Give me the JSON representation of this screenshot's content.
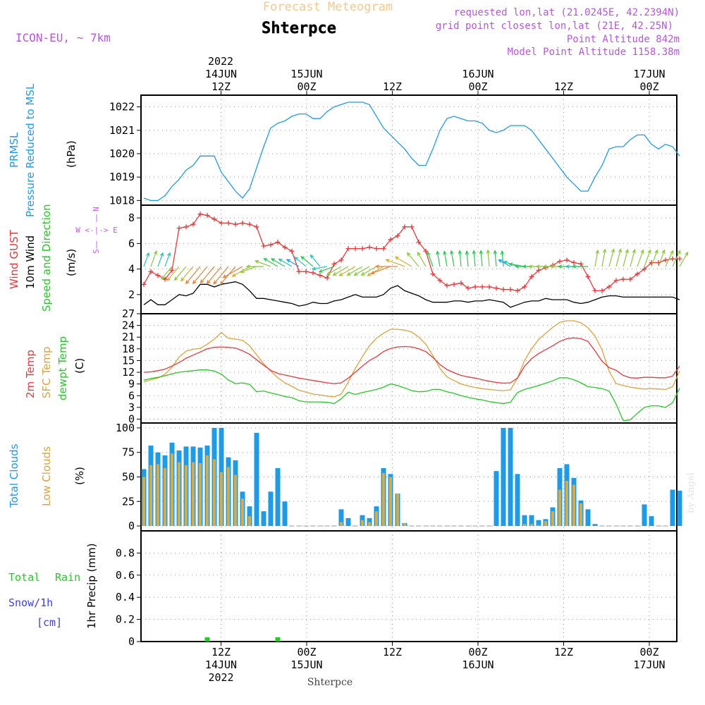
{
  "header": {
    "title": "Forecast Meteogram",
    "location": "Shterpce",
    "model": "ICON-EU, ~ 7km",
    "requested": "requested lon,lat (21.0245E, 42.2394N)",
    "gridpoint": "grid point closest lon,lat (21E, 42.25N)",
    "altitude": "Point Altitude 842m",
    "model_altitude": "Model Point Altitude 1158.38m",
    "footer": "Shterpce",
    "credit": "by Angel"
  },
  "time_axis": {
    "top_year": "2022",
    "ticks": [
      {
        "pos": 0.5,
        "top": "14JUN",
        "time": "12Z",
        "bottom": "14JUN",
        "year": "2022"
      },
      {
        "pos": 1.0,
        "top": "15JUN",
        "time": "00Z",
        "bottom": "15JUN",
        "year": ""
      },
      {
        "pos": 1.5,
        "top": "",
        "time": "12Z",
        "bottom": "",
        "year": ""
      },
      {
        "pos": 2.0,
        "top": "16JUN",
        "time": "00Z",
        "bottom": "16JUN",
        "year": ""
      },
      {
        "pos": 2.5,
        "top": "",
        "time": "12Z",
        "bottom": "",
        "year": ""
      },
      {
        "pos": 3.0,
        "top": "17JUN",
        "time": "00Z",
        "bottom": "17JUN",
        "year": ""
      }
    ]
  },
  "labels": {
    "pressure": [
      "PRMSL",
      "Pressure Reduced to MSL",
      "(hPa)"
    ],
    "wind": [
      "Wind GUST",
      "10m Wind",
      "Speed and Direction",
      "(m/s)"
    ],
    "compass": [
      "N",
      "W <-|-> E",
      "S"
    ],
    "temp": [
      "2m Temp",
      "SFC Temp",
      "dewpt Temp",
      "(C)"
    ],
    "clouds": [
      "Total Clouds",
      "Low Clouds",
      "(%)"
    ],
    "precip": [
      "Total",
      "Rain",
      "Snow/1h",
      "[cm]",
      "1hr Precip (mm)"
    ]
  },
  "colors": {
    "pressure": "#1e9be8",
    "gust": "#e8383c",
    "wind": "#000000",
    "t2m": "#e8383c",
    "tsfc": "#dfa23c",
    "dew": "#28c828",
    "total_clouds": "#1e9be8",
    "low_clouds": "#d5ac4c",
    "rain": "#28c828",
    "snow": "#3c3cf0",
    "compass": "#c060e0",
    "title": "#f5c98e",
    "info": "#b458d8"
  },
  "chart_data": [
    {
      "type": "line",
      "title": "PRMSL Pressure Reduced to MSL",
      "ylabel": "(hPa)",
      "ylim": [
        1017.8,
        1022.5
      ],
      "yticks": [
        1018,
        1019,
        1020,
        1021,
        1022
      ],
      "values": [
        1018.1,
        1018.0,
        1018.0,
        1018.2,
        1018.6,
        1018.9,
        1019.3,
        1019.5,
        1019.9,
        1019.9,
        1019.9,
        1019.2,
        1018.8,
        1018.4,
        1018.1,
        1018.5,
        1019.4,
        1020.3,
        1021.1,
        1021.3,
        1021.4,
        1021.6,
        1021.7,
        1021.7,
        1021.5,
        1021.5,
        1021.8,
        1022.0,
        1022.1,
        1022.2,
        1022.2,
        1022.2,
        1022.1,
        1021.6,
        1021.1,
        1020.8,
        1020.5,
        1020.2,
        1019.8,
        1019.5,
        1019.5,
        1020.2,
        1021.0,
        1021.5,
        1021.6,
        1021.5,
        1021.4,
        1021.4,
        1021.3,
        1021.0,
        1020.9,
        1021.0,
        1021.2,
        1021.2,
        1021.2,
        1021.0,
        1020.6,
        1020.2,
        1019.8,
        1019.4,
        1019.0,
        1018.7,
        1018.4,
        1018.4,
        1019.0,
        1019.5,
        1020.2,
        1020.3,
        1020.3,
        1020.6,
        1020.8,
        1020.8,
        1020.4,
        1020.2,
        1020.4,
        1020.3,
        1019.9
      ]
    },
    {
      "type": "line",
      "title": "Wind GUST / 10m Wind Speed and Direction",
      "ylabel": "(m/s)",
      "ylim": [
        0.5,
        9
      ],
      "yticks": [
        2,
        4,
        6,
        8
      ],
      "series": [
        {
          "name": "Wind GUST",
          "values": [
            2.8,
            3.8,
            3.5,
            3.2,
            3.9,
            7.2,
            7.3,
            7.5,
            8.3,
            8.2,
            7.9,
            7.6,
            7.6,
            7.5,
            7.6,
            7.5,
            7.3,
            5.8,
            5.9,
            6.1,
            5.7,
            5.4,
            3.8,
            3.8,
            3.7,
            3.5,
            3.3,
            4.4,
            4.7,
            5.6,
            5.6,
            5.6,
            5.7,
            5.6,
            5.6,
            6.3,
            6.6,
            7.3,
            7.3,
            6.1,
            5.4,
            3.6,
            3.1,
            2.7,
            2.8,
            2.9,
            2.5,
            2.6,
            2.6,
            2.6,
            2.5,
            2.4,
            2.4,
            2.3,
            2.6,
            3.4,
            3.9,
            4.1,
            4.3,
            4.6,
            4.7,
            4.5,
            4.4,
            3.4,
            2.3,
            2.3,
            2.6,
            3.1,
            3.2,
            3.2,
            3.6,
            4.0,
            4.5,
            4.5,
            4.7,
            4.8,
            4.8
          ]
        },
        {
          "name": "10m Wind",
          "values": [
            1.2,
            1.6,
            1.2,
            1.2,
            1.6,
            2.0,
            1.9,
            2.1,
            2.8,
            2.8,
            2.6,
            2.8,
            2.9,
            3.0,
            2.8,
            2.3,
            1.7,
            1.7,
            1.6,
            1.5,
            1.4,
            1.3,
            1.1,
            1.2,
            1.4,
            1.3,
            1.3,
            1.5,
            1.6,
            1.8,
            2.0,
            1.8,
            1.8,
            1.8,
            2.0,
            2.5,
            2.7,
            2.3,
            2.1,
            1.9,
            1.6,
            1.4,
            1.4,
            1.4,
            1.5,
            1.5,
            1.4,
            1.5,
            1.5,
            1.6,
            1.5,
            1.4,
            1.0,
            1.2,
            1.4,
            1.5,
            1.5,
            1.7,
            1.6,
            1.6,
            1.6,
            1.4,
            1.3,
            1.4,
            1.6,
            1.8,
            1.9,
            1.9,
            1.8,
            1.8,
            1.8,
            1.8,
            1.8,
            1.8,
            1.8,
            1.8,
            1.6
          ]
        },
        {
          "name": "Direction (deg, arrow points toward)",
          "values": [
            20,
            20,
            20,
            20,
            220,
            220,
            220,
            220,
            220,
            220,
            220,
            220,
            220,
            220,
            240,
            240,
            250,
            270,
            290,
            300,
            300,
            300,
            300,
            310,
            310,
            320,
            260,
            250,
            240,
            240,
            240,
            240,
            240,
            240,
            240,
            250,
            270,
            290,
            300,
            320,
            330,
            340,
            350,
            350,
            350,
            355,
            355,
            355,
            355,
            355,
            355,
            355,
            300,
            290,
            280,
            270,
            270,
            270,
            270,
            270,
            270,
            270,
            270,
            270,
            10,
            10,
            15,
            15,
            15,
            15,
            20,
            20,
            20,
            20,
            25,
            25,
            30
          ]
        }
      ],
      "compass": "N W<-|->E S"
    },
    {
      "type": "line",
      "title": "2m Temp / SFC Temp / dewpt Temp",
      "ylabel": "(C)",
      "ylim": [
        -1,
        27
      ],
      "yticks": [
        0,
        3,
        6,
        9,
        12,
        15,
        18,
        21,
        24,
        27
      ],
      "series": [
        {
          "name": "2m Temp",
          "values": [
            12.0,
            12.1,
            12.4,
            12.8,
            13.6,
            14.5,
            15.6,
            16.4,
            17.2,
            18.0,
            18.4,
            18.5,
            18.4,
            18.2,
            17.5,
            16.6,
            15.2,
            13.8,
            12.5,
            11.7,
            11.3,
            10.9,
            10.5,
            10.2,
            9.9,
            9.6,
            9.3,
            9.1,
            9.3,
            10.5,
            12.0,
            13.6,
            15.0,
            16.0,
            17.3,
            18.1,
            18.5,
            18.6,
            18.5,
            18.0,
            17.3,
            15.8,
            14.0,
            12.7,
            11.9,
            11.2,
            10.8,
            10.5,
            10.1,
            9.7,
            9.4,
            9.2,
            9.3,
            10.5,
            13.5,
            15.5,
            16.8,
            17.8,
            18.8,
            19.9,
            20.6,
            20.8,
            20.6,
            19.9,
            17.5,
            14.8,
            13.2,
            12.5,
            11.2,
            10.6,
            10.5,
            10.7,
            10.7,
            10.6,
            10.6,
            11.0,
            13.6
          ]
        },
        {
          "name": "SFC Temp",
          "values": [
            9.5,
            10.1,
            10.5,
            11.5,
            13.3,
            15.9,
            17.4,
            17.9,
            18.1,
            19.2,
            20.5,
            22.2,
            20.7,
            20.5,
            20.2,
            18.8,
            16.5,
            14.2,
            12.3,
            10.6,
            9.3,
            8.4,
            7.4,
            6.9,
            6.4,
            6.2,
            5.9,
            5.7,
            6.4,
            9.5,
            13.0,
            16.0,
            18.8,
            20.7,
            22.0,
            23.0,
            23.0,
            22.8,
            22.3,
            21.0,
            19.2,
            16.3,
            13.0,
            10.8,
            9.9,
            9.0,
            8.5,
            8.1,
            7.8,
            7.6,
            7.4,
            7.3,
            7.5,
            10.5,
            15.0,
            18.0,
            20.4,
            22.0,
            23.5,
            24.8,
            25.2,
            25.2,
            24.7,
            23.4,
            21.3,
            17.7,
            12.2,
            9.1,
            8.6,
            8.2,
            7.9,
            7.7,
            7.8,
            7.7,
            7.6,
            8.3,
            12.3
          ]
        },
        {
          "name": "dewpt Temp",
          "values": [
            10.0,
            10.4,
            10.7,
            11.1,
            11.6,
            12.0,
            12.2,
            12.4,
            12.6,
            12.6,
            12.3,
            11.5,
            10.0,
            9.1,
            9.3,
            8.9,
            7.0,
            7.2,
            6.7,
            6.3,
            5.8,
            5.5,
            4.7,
            4.4,
            4.4,
            4.4,
            4.3,
            4.0,
            5.2,
            6.9,
            6.3,
            6.8,
            7.2,
            7.6,
            8.2,
            9.0,
            8.6,
            8.0,
            7.3,
            7.0,
            7.1,
            7.6,
            7.6,
            7.0,
            6.6,
            6.0,
            5.6,
            5.2,
            4.9,
            4.5,
            4.2,
            4.0,
            4.3,
            6.8,
            7.6,
            8.1,
            8.6,
            9.2,
            9.8,
            10.6,
            10.6,
            10.1,
            9.3,
            8.3,
            8.1,
            7.8,
            7.2,
            3.8,
            -0.4,
            -0.2,
            1.5,
            3.0,
            3.4,
            3.4,
            3.0,
            4.2,
            7.9
          ]
        }
      ]
    },
    {
      "type": "bar",
      "title": "Total Clouds / Low Clouds",
      "ylabel": "(%)",
      "ylim": [
        -5,
        105
      ],
      "yticks": [
        0,
        25,
        50,
        75,
        100
      ],
      "series": [
        {
          "name": "Total Clouds",
          "values": [
            58,
            82,
            75,
            72,
            85,
            77,
            81,
            81,
            80,
            82,
            100,
            100,
            70,
            67,
            35,
            20,
            95,
            15,
            35,
            59,
            25,
            0,
            0,
            0,
            0,
            0,
            0,
            0,
            17,
            8,
            0,
            11,
            8,
            20,
            59,
            53,
            33,
            3,
            0,
            0,
            0,
            0,
            0,
            0,
            0,
            0,
            0,
            0,
            0,
            0,
            56,
            100,
            100,
            53,
            11,
            11,
            6,
            7,
            19,
            59,
            63,
            49,
            26,
            17,
            2,
            0,
            0,
            0,
            0,
            0,
            0,
            22,
            10,
            0,
            0,
            37,
            36
          ]
        },
        {
          "name": "Low Clouds",
          "values": [
            50,
            62,
            63,
            59,
            74,
            65,
            62,
            65,
            64,
            72,
            68,
            55,
            60,
            52,
            28,
            10,
            0,
            0,
            0,
            0,
            0,
            0,
            0,
            0,
            0,
            0,
            0,
            0,
            4,
            0,
            0,
            6,
            4,
            15,
            54,
            50,
            33,
            3,
            0,
            0,
            0,
            0,
            0,
            0,
            0,
            0,
            0,
            0,
            0,
            0,
            0,
            0,
            0,
            0,
            2,
            2,
            1,
            5,
            15,
            37,
            46,
            42,
            23,
            0,
            0,
            0,
            0,
            0,
            0,
            0,
            0,
            0,
            0,
            0,
            0,
            0,
            0
          ]
        }
      ]
    },
    {
      "type": "bar",
      "title": "1hr Precip",
      "ylabel": "1hr Precip (mm)",
      "ylim": [
        0,
        1.0
      ],
      "yticks": [
        0,
        0.2,
        0.4,
        0.6,
        0.8
      ],
      "tick_labels": [
        "0",
        "0.2",
        "0.4",
        "0.6",
        "0.8"
      ],
      "series": [
        {
          "name": "Total Rain",
          "values": [
            {
              "index": 9,
              "value": 0.02
            },
            {
              "index": 19,
              "value": 0.02
            }
          ]
        },
        {
          "name": "Snow/1h",
          "values": []
        }
      ]
    }
  ]
}
